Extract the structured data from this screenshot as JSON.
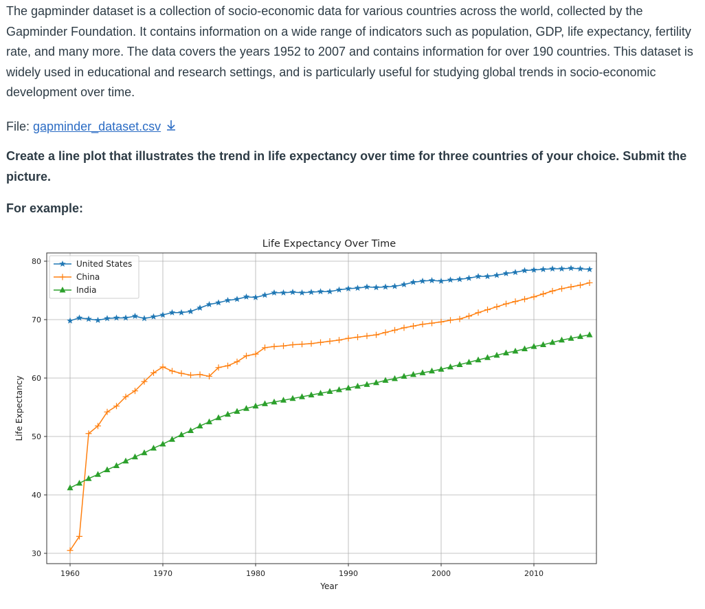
{
  "intro_text": "The gapminder dataset is a collection of socio-economic data for various countries across the world, collected by the Gapminder Foundation. It contains information on a wide range of indicators such as population, GDP, life expectancy, fertility rate, and many more. The data covers the years 1952 to 2007 and contains information for over 190 countries. This dataset is widely used in educational and research settings, and is particularly useful for studying global trends in socio-economic development over time.",
  "file": {
    "label": "File:",
    "filename": "gapminder_dataset.csv",
    "download_icon": "download-arrow-icon"
  },
  "task_text": "Create a line plot that illustrates the trend in life expectancy over time for three countries of your choice. Submit the picture.",
  "example_label": "For example:",
  "colors": {
    "link": "#2b6cc4",
    "us": "#1f77b4",
    "china": "#ff7f0e",
    "india": "#2ca02c"
  },
  "chart_data": {
    "type": "line",
    "title": "Life Expectancy Over Time",
    "xlabel": "Year",
    "ylabel": "Life Expectancy",
    "xlim": [
      1960,
      2016
    ],
    "ylim": [
      30,
      80
    ],
    "xticks": [
      1960,
      1970,
      1980,
      1990,
      2000,
      2010
    ],
    "yticks": [
      30,
      40,
      50,
      60,
      70,
      80
    ],
    "grid": true,
    "legend": "top-left",
    "x": [
      1960,
      1961,
      1962,
      1963,
      1964,
      1965,
      1966,
      1967,
      1968,
      1969,
      1970,
      1971,
      1972,
      1973,
      1974,
      1975,
      1976,
      1977,
      1978,
      1979,
      1980,
      1981,
      1982,
      1983,
      1984,
      1985,
      1986,
      1987,
      1988,
      1989,
      1990,
      1991,
      1992,
      1993,
      1994,
      1995,
      1996,
      1997,
      1998,
      1999,
      2000,
      2001,
      2002,
      2003,
      2004,
      2005,
      2006,
      2007,
      2008,
      2009,
      2010,
      2011,
      2012,
      2013,
      2014,
      2015,
      2016
    ],
    "series": [
      {
        "name": "United States",
        "marker": "star",
        "color": "#1f77b4",
        "values": [
          69.8,
          70.3,
          70.1,
          69.9,
          70.2,
          70.3,
          70.3,
          70.6,
          70.2,
          70.5,
          70.8,
          71.2,
          71.2,
          71.4,
          72.0,
          72.6,
          72.9,
          73.3,
          73.5,
          73.9,
          73.8,
          74.2,
          74.6,
          74.6,
          74.7,
          74.6,
          74.7,
          74.8,
          74.8,
          75.1,
          75.3,
          75.4,
          75.6,
          75.5,
          75.6,
          75.7,
          76.0,
          76.4,
          76.6,
          76.7,
          76.6,
          76.8,
          76.9,
          77.1,
          77.4,
          77.4,
          77.6,
          77.9,
          78.1,
          78.4,
          78.5,
          78.6,
          78.7,
          78.7,
          78.8,
          78.7,
          78.6
        ]
      },
      {
        "name": "China",
        "marker": "plus",
        "color": "#ff7f0e",
        "values": [
          30.5,
          32.9,
          50.5,
          51.8,
          54.2,
          55.2,
          56.8,
          57.8,
          59.4,
          60.9,
          61.9,
          61.2,
          60.8,
          60.5,
          60.6,
          60.3,
          61.8,
          62.1,
          62.8,
          63.8,
          64.1,
          65.2,
          65.4,
          65.5,
          65.7,
          65.8,
          65.9,
          66.1,
          66.3,
          66.5,
          66.8,
          67.0,
          67.2,
          67.4,
          67.8,
          68.2,
          68.6,
          68.9,
          69.2,
          69.4,
          69.6,
          69.9,
          70.1,
          70.6,
          71.2,
          71.7,
          72.2,
          72.7,
          73.1,
          73.5,
          73.9,
          74.4,
          74.9,
          75.3,
          75.6,
          75.9,
          76.3
        ]
      },
      {
        "name": "India",
        "marker": "triangle",
        "color": "#2ca02c",
        "values": [
          41.2,
          42.0,
          42.8,
          43.5,
          44.3,
          45.0,
          45.8,
          46.5,
          47.2,
          48.0,
          48.7,
          49.5,
          50.3,
          51.0,
          51.8,
          52.5,
          53.2,
          53.8,
          54.3,
          54.8,
          55.2,
          55.6,
          55.9,
          56.2,
          56.5,
          56.8,
          57.1,
          57.4,
          57.7,
          58.0,
          58.3,
          58.6,
          58.9,
          59.2,
          59.6,
          59.9,
          60.3,
          60.6,
          60.9,
          61.2,
          61.5,
          61.9,
          62.3,
          62.7,
          63.1,
          63.5,
          63.9,
          64.3,
          64.6,
          65.0,
          65.4,
          65.7,
          66.1,
          66.5,
          66.8,
          67.1,
          67.4
        ]
      }
    ]
  }
}
